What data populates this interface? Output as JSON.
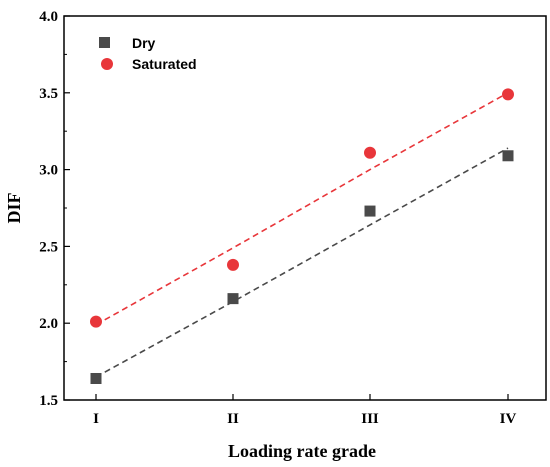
{
  "chart_data": {
    "type": "scatter",
    "xlabel": "Loading rate grade",
    "ylabel": "DIF",
    "categories": [
      "I",
      "II",
      "III",
      "IV"
    ],
    "ylim": [
      1.5,
      4.0
    ],
    "yticks": [
      "1.5",
      "2.0",
      "2.5",
      "3.0",
      "3.5",
      "4.0"
    ],
    "grid": false,
    "legend_position": "top-left",
    "series": [
      {
        "name": "Dry",
        "marker": "square",
        "color": "#4a4a4a",
        "values": [
          1.64,
          2.16,
          2.73,
          3.09
        ],
        "trend": [
          1.65,
          2.14,
          2.64,
          3.14
        ]
      },
      {
        "name": "Saturated",
        "marker": "circle",
        "color": "#e8363a",
        "values": [
          2.01,
          2.38,
          3.11,
          3.49
        ],
        "trend": [
          1.99,
          2.49,
          3.0,
          3.5
        ]
      }
    ]
  }
}
